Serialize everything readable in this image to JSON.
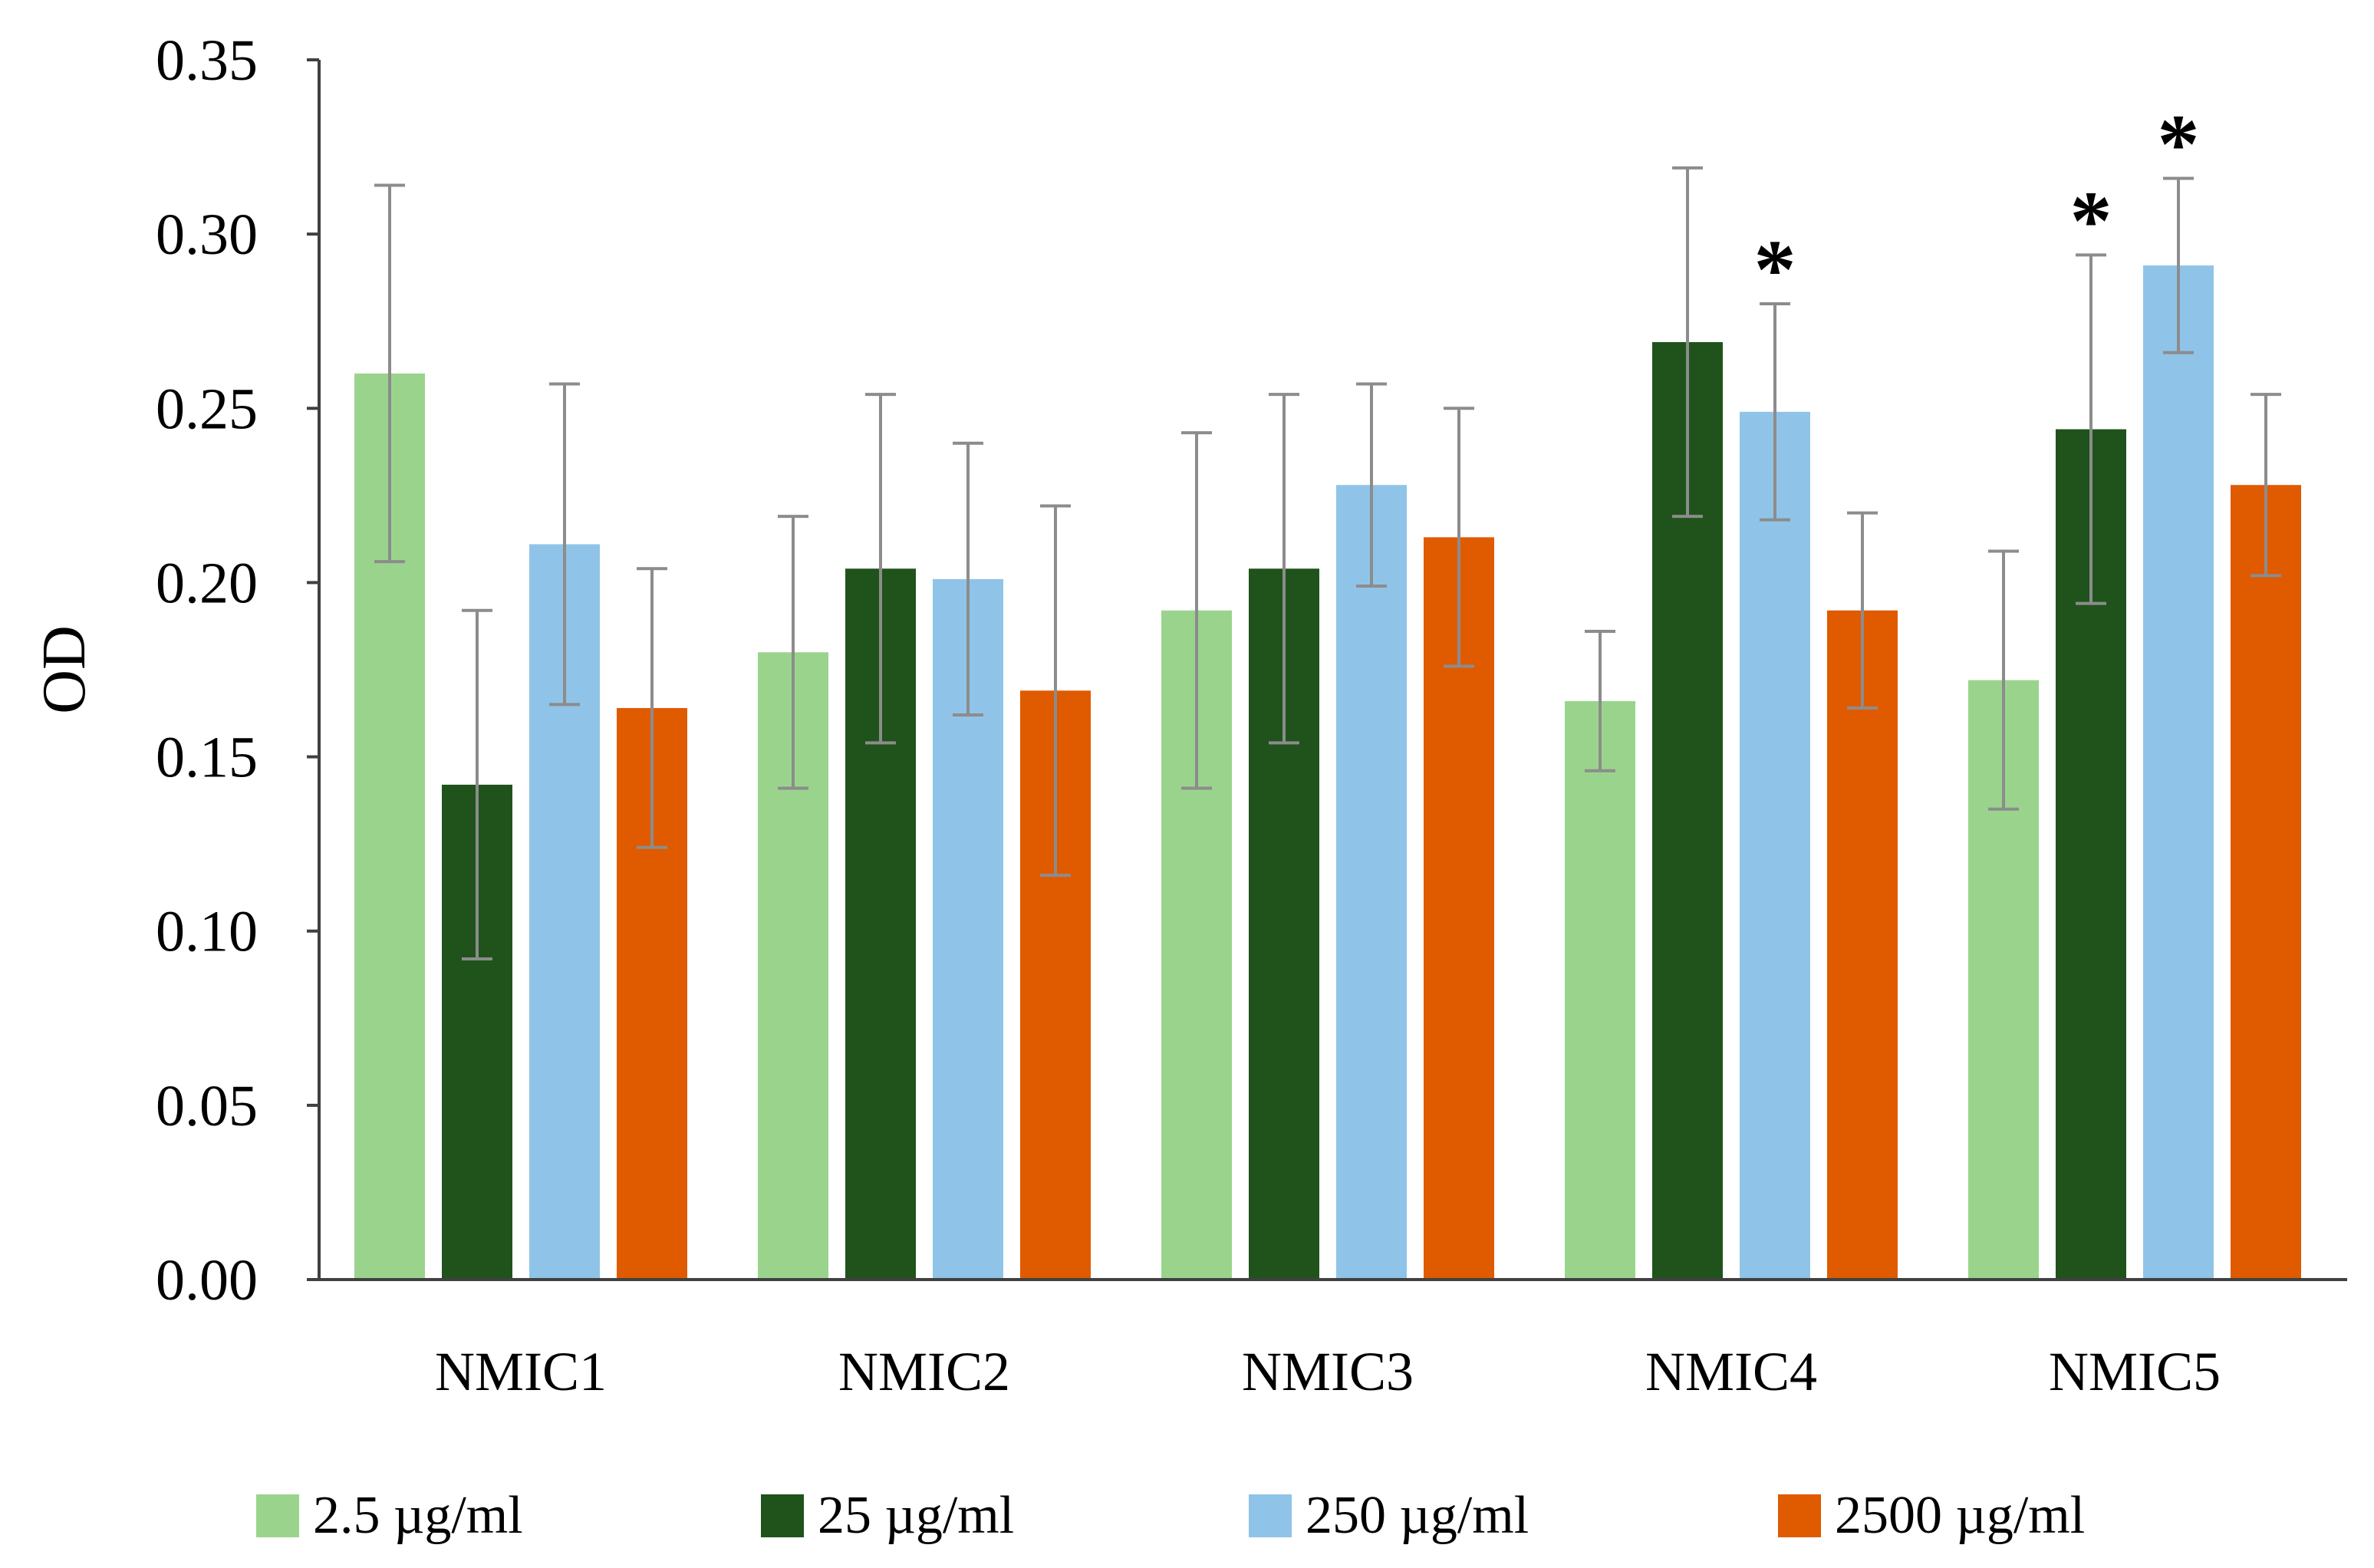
{
  "chart_data": {
    "type": "bar",
    "title": "",
    "xlabel": "",
    "ylabel": "OD",
    "ylim": [
      0,
      0.35
    ],
    "yticks": [
      "0.00",
      "0.05",
      "0.10",
      "0.15",
      "0.20",
      "0.25",
      "0.30",
      "0.35"
    ],
    "grid": false,
    "legend_position": "bottom",
    "categories": [
      "NMIC1",
      "NMIC2",
      "NMIC3",
      "NMIC4",
      "NMIC5"
    ],
    "series": [
      {
        "name": "2.5 µg/ml",
        "color": "#9ad48c",
        "values": [
          0.26,
          0.18,
          0.192,
          0.166,
          0.172
        ],
        "errors": [
          0.054,
          0.039,
          0.051,
          0.02,
          0.037
        ],
        "significant": [
          false,
          false,
          false,
          false,
          false
        ]
      },
      {
        "name": "25 µg/ml",
        "color": "#1f531b",
        "values": [
          0.142,
          0.204,
          0.204,
          0.269,
          0.244
        ],
        "errors": [
          0.05,
          0.05,
          0.05,
          0.05,
          0.05
        ],
        "significant": [
          false,
          false,
          false,
          false,
          true
        ]
      },
      {
        "name": "250 µg/ml",
        "color": "#8fc4e8",
        "values": [
          0.211,
          0.201,
          0.228,
          0.249,
          0.291
        ],
        "errors": [
          0.046,
          0.039,
          0.029,
          0.031,
          0.025
        ],
        "significant": [
          false,
          false,
          false,
          true,
          true
        ]
      },
      {
        "name": "2500 µg/ml",
        "color": "#e05a00",
        "values": [
          0.164,
          0.169,
          0.213,
          0.192,
          0.228
        ],
        "errors": [
          0.04,
          0.053,
          0.037,
          0.028,
          0.026
        ],
        "significant": [
          false,
          false,
          false,
          false,
          false
        ]
      }
    ],
    "significance_marker": "*"
  }
}
